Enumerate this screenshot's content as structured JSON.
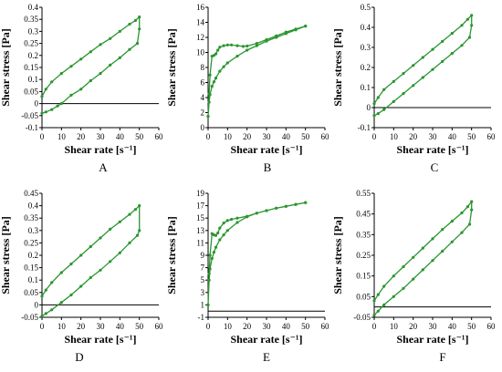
{
  "chart_data": [
    {
      "type": "line",
      "letter": "A",
      "xlabel": "Shear rate [s⁻¹]",
      "ylabel": "Shear stress [Pa]",
      "xlim": [
        0,
        60
      ],
      "ylim": [
        -0.1,
        0.4
      ],
      "xticks": [
        "0",
        "10",
        "20",
        "30",
        "40",
        "50",
        "60"
      ],
      "yticks": [
        "-0.1",
        "-0.05",
        "0",
        "0.05",
        "0.1",
        "0.15",
        "0.2",
        "0.25",
        "0.3",
        "0.35",
        "0.4"
      ],
      "series": [
        {
          "x": [
            0,
            2,
            5,
            10,
            15,
            20,
            25,
            30,
            35,
            40,
            45,
            48,
            50,
            50,
            49,
            45,
            40,
            35,
            30,
            25,
            20,
            15,
            10,
            8,
            5,
            2,
            0
          ],
          "y": [
            0.03,
            0.06,
            0.09,
            0.125,
            0.155,
            0.185,
            0.215,
            0.245,
            0.27,
            0.3,
            0.33,
            0.345,
            0.36,
            0.31,
            0.25,
            0.225,
            0.19,
            0.16,
            0.125,
            0.095,
            0.06,
            0.035,
            0.0,
            -0.01,
            -0.025,
            -0.035,
            -0.04
          ]
        }
      ]
    },
    {
      "type": "line",
      "letter": "B",
      "xlabel": "Shear rate [s⁻¹]",
      "ylabel": "Shear stress [Pa]",
      "xlim": [
        0,
        60
      ],
      "ylim": [
        0,
        16
      ],
      "xticks": [
        "0",
        "10",
        "20",
        "30",
        "40",
        "50",
        "60"
      ],
      "yticks": [
        "0",
        "2",
        "4",
        "6",
        "8",
        "10",
        "12",
        "14",
        "16"
      ],
      "series": [
        {
          "x": [
            0,
            0.5,
            1,
            2,
            3,
            4,
            5,
            6,
            8,
            10,
            12,
            15,
            18,
            20,
            25,
            30,
            35,
            40,
            45,
            50,
            50,
            45,
            40,
            35,
            30,
            25,
            20,
            15,
            10,
            8,
            6,
            4,
            3,
            2,
            1,
            0.5,
            0
          ],
          "y": [
            1.5,
            4.5,
            7,
            9.5,
            9.6,
            9.8,
            10.3,
            10.7,
            10.9,
            11.0,
            11.0,
            10.9,
            10.8,
            10.85,
            11.2,
            11.7,
            12.2,
            12.7,
            13.1,
            13.5,
            13.5,
            13.0,
            12.5,
            12.0,
            11.5,
            10.9,
            10.3,
            9.5,
            8.6,
            8.1,
            7.5,
            6.6,
            6.1,
            5.5,
            4.4,
            3.4,
            1.5
          ]
        }
      ]
    },
    {
      "type": "line",
      "letter": "C",
      "xlabel": "Shear rate [s⁻¹]",
      "ylabel": "Shear stress [Pa]",
      "xlim": [
        0,
        60
      ],
      "ylim": [
        -0.1,
        0.5
      ],
      "xticks": [
        "0",
        "10",
        "20",
        "30",
        "40",
        "50",
        "60"
      ],
      "yticks": [
        "-0.1",
        "0",
        "0.1",
        "0.2",
        "0.3",
        "0.4",
        "0.5"
      ],
      "series": [
        {
          "x": [
            0,
            2,
            5,
            10,
            15,
            20,
            25,
            30,
            35,
            40,
            45,
            48,
            50,
            50,
            49,
            45,
            40,
            35,
            30,
            25,
            20,
            15,
            10,
            5,
            2,
            0
          ],
          "y": [
            0.02,
            0.05,
            0.09,
            0.13,
            0.17,
            0.21,
            0.25,
            0.29,
            0.33,
            0.37,
            0.41,
            0.44,
            0.46,
            0.41,
            0.35,
            0.31,
            0.27,
            0.23,
            0.19,
            0.15,
            0.11,
            0.07,
            0.03,
            -0.01,
            -0.03,
            -0.04
          ]
        }
      ]
    },
    {
      "type": "line",
      "letter": "D",
      "xlabel": "Shear rate [s⁻¹]",
      "ylabel": "Shear stress [Pa]",
      "xlim": [
        0,
        60
      ],
      "ylim": [
        -0.05,
        0.45
      ],
      "xticks": [
        "0",
        "10",
        "20",
        "30",
        "40",
        "50",
        "60"
      ],
      "yticks": [
        "-0.05",
        "0",
        "0.05",
        "0.1",
        "0.15",
        "0.2",
        "0.25",
        "0.3",
        "0.35",
        "0.4",
        "0.45"
      ],
      "series": [
        {
          "x": [
            0,
            2,
            5,
            10,
            15,
            20,
            25,
            30,
            35,
            40,
            45,
            48,
            50,
            50,
            49,
            45,
            40,
            35,
            30,
            25,
            20,
            15,
            10,
            5,
            2,
            0
          ],
          "y": [
            0.035,
            0.06,
            0.09,
            0.13,
            0.165,
            0.2,
            0.235,
            0.27,
            0.305,
            0.335,
            0.365,
            0.385,
            0.4,
            0.3,
            0.28,
            0.25,
            0.21,
            0.175,
            0.14,
            0.11,
            0.075,
            0.04,
            0.01,
            -0.02,
            -0.035,
            -0.045
          ]
        }
      ]
    },
    {
      "type": "line",
      "letter": "E",
      "xlabel": "Shear rate [s⁻¹]",
      "ylabel": "Shear stress [Pa]",
      "xlim": [
        0,
        60
      ],
      "ylim": [
        -1,
        19
      ],
      "xticks": [
        "0",
        "10",
        "20",
        "30",
        "40",
        "50",
        "60"
      ],
      "yticks": [
        "-1",
        "1",
        "3",
        "5",
        "7",
        "9",
        "11",
        "13",
        "15",
        "17",
        "19"
      ],
      "series": [
        {
          "x": [
            0,
            0.5,
            1,
            2,
            3,
            4,
            5,
            6,
            8,
            10,
            12,
            15,
            20,
            25,
            30,
            35,
            40,
            45,
            50,
            50,
            45,
            40,
            35,
            30,
            25,
            20,
            15,
            10,
            8,
            6,
            4,
            3,
            2,
            1,
            0.5,
            0
          ],
          "y": [
            1,
            6,
            9,
            12.5,
            12.3,
            12.2,
            12.6,
            13.4,
            14.2,
            14.6,
            14.8,
            15.0,
            15.3,
            15.8,
            16.2,
            16.6,
            16.9,
            17.2,
            17.5,
            17.5,
            17.2,
            16.9,
            16.6,
            16.2,
            15.8,
            15.2,
            14.3,
            13.0,
            12.3,
            11.5,
            10.3,
            9.5,
            8.5,
            6.8,
            5.0,
            1
          ]
        }
      ]
    },
    {
      "type": "line",
      "letter": "F",
      "xlabel": "Shear rate [s⁻¹]",
      "ylabel": "Shear stress [Pa]",
      "xlim": [
        0,
        60
      ],
      "ylim": [
        -0.05,
        0.55
      ],
      "xticks": [
        "0",
        "10",
        "20",
        "30",
        "40",
        "50",
        "60"
      ],
      "yticks": [
        "-0.05",
        "0.05",
        "0.15",
        "0.25",
        "0.35",
        "0.45",
        "0.55"
      ],
      "series": [
        {
          "x": [
            0,
            2,
            5,
            10,
            15,
            20,
            25,
            30,
            35,
            40,
            45,
            48,
            50,
            50,
            49,
            45,
            40,
            35,
            30,
            25,
            20,
            15,
            10,
            5,
            2,
            0
          ],
          "y": [
            0.03,
            0.06,
            0.1,
            0.15,
            0.195,
            0.24,
            0.285,
            0.33,
            0.375,
            0.415,
            0.455,
            0.485,
            0.51,
            0.47,
            0.4,
            0.36,
            0.315,
            0.27,
            0.225,
            0.18,
            0.135,
            0.09,
            0.05,
            0.01,
            -0.02,
            -0.04
          ]
        }
      ]
    }
  ],
  "style": {
    "series_color": "#2a9630",
    "marker_color": "#2a9630"
  }
}
